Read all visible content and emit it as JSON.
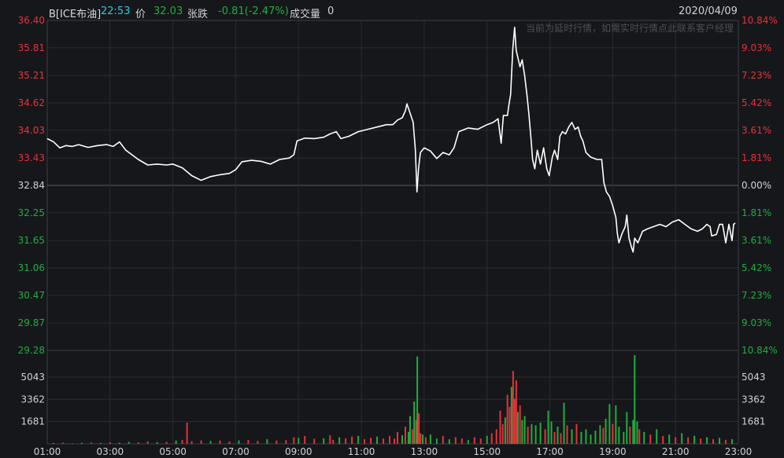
{
  "header": {
    "symbol": "B[ICE布油]",
    "time": "22:53",
    "price_label": "价",
    "price": "32.03",
    "change_label": "张跌",
    "change": "-0.81(-2.47%)",
    "volume_label": "成交量",
    "volume": "0",
    "date": "2020/04/09"
  },
  "notice": "当前为延时行情，如需实时行情点此联系客户经理",
  "colors": {
    "up": "#e8313a",
    "down": "#1fae3f",
    "base": "#d0d3d6",
    "line": "#ffffff",
    "time": "#31c7d8"
  },
  "chart_data": {
    "type": "line",
    "price_axis": {
      "ticks": [
        "36.40",
        "35.81",
        "35.21",
        "34.62",
        "34.03",
        "33.43",
        "32.84",
        "32.25",
        "31.65",
        "31.06",
        "30.47",
        "29.87",
        "29.28"
      ],
      "ylim": [
        29.28,
        36.4
      ],
      "reference": 32.84
    },
    "percent_axis": {
      "ticks": [
        "10.84%",
        "9.03%",
        "7.23%",
        "5.42%",
        "3.61%",
        "1.81%",
        "0.00%",
        "1.81%",
        "3.61%",
        "5.42%",
        "7.23%",
        "9.03%",
        "10.84%"
      ]
    },
    "volume_axis": {
      "ticks": [
        "5043",
        "3362",
        "1681"
      ]
    },
    "x_ticks": [
      "01:00",
      "03:00",
      "05:00",
      "07:00",
      "09:00",
      "11:00",
      "13:00",
      "15:00",
      "17:00",
      "19:00",
      "21:00",
      "23:00"
    ],
    "x_range_hours": [
      1,
      23
    ],
    "series": [
      {
        "points": [
          [
            1.0,
            33.85
          ],
          [
            1.2,
            33.78
          ],
          [
            1.4,
            33.65
          ],
          [
            1.6,
            33.7
          ],
          [
            1.8,
            33.68
          ],
          [
            2.0,
            33.72
          ],
          [
            2.3,
            33.66
          ],
          [
            2.6,
            33.7
          ],
          [
            2.9,
            33.72
          ],
          [
            3.1,
            33.68
          ],
          [
            3.3,
            33.78
          ],
          [
            3.5,
            33.6
          ],
          [
            3.7,
            33.5
          ],
          [
            3.9,
            33.4
          ],
          [
            4.2,
            33.28
          ],
          [
            4.5,
            33.3
          ],
          [
            4.8,
            33.28
          ],
          [
            5.0,
            33.3
          ],
          [
            5.3,
            33.22
          ],
          [
            5.6,
            33.05
          ],
          [
            5.9,
            32.95
          ],
          [
            6.2,
            33.03
          ],
          [
            6.5,
            33.07
          ],
          [
            6.8,
            33.1
          ],
          [
            7.0,
            33.18
          ],
          [
            7.2,
            33.35
          ],
          [
            7.5,
            33.38
          ],
          [
            7.8,
            33.36
          ],
          [
            8.1,
            33.3
          ],
          [
            8.4,
            33.4
          ],
          [
            8.7,
            33.43
          ],
          [
            8.85,
            33.5
          ],
          [
            8.95,
            33.8
          ],
          [
            9.2,
            33.86
          ],
          [
            9.5,
            33.85
          ],
          [
            9.8,
            33.88
          ],
          [
            10.0,
            33.95
          ],
          [
            10.2,
            34.0
          ],
          [
            10.35,
            33.85
          ],
          [
            10.6,
            33.9
          ],
          [
            10.9,
            34.0
          ],
          [
            11.2,
            34.05
          ],
          [
            11.5,
            34.1
          ],
          [
            11.8,
            34.15
          ],
          [
            12.0,
            34.15
          ],
          [
            12.15,
            34.25
          ],
          [
            12.3,
            34.3
          ],
          [
            12.4,
            34.45
          ],
          [
            12.45,
            34.6
          ],
          [
            12.55,
            34.4
          ],
          [
            12.65,
            34.2
          ],
          [
            12.72,
            33.6
          ],
          [
            12.77,
            32.7
          ],
          [
            12.82,
            33.2
          ],
          [
            12.88,
            33.55
          ],
          [
            13.0,
            33.65
          ],
          [
            13.2,
            33.58
          ],
          [
            13.4,
            33.42
          ],
          [
            13.6,
            33.55
          ],
          [
            13.8,
            33.5
          ],
          [
            13.95,
            33.65
          ],
          [
            14.1,
            34.0
          ],
          [
            14.4,
            34.08
          ],
          [
            14.7,
            34.05
          ],
          [
            15.0,
            34.15
          ],
          [
            15.2,
            34.2
          ],
          [
            15.35,
            34.28
          ],
          [
            15.45,
            33.75
          ],
          [
            15.52,
            34.35
          ],
          [
            15.65,
            34.35
          ],
          [
            15.7,
            34.6
          ],
          [
            15.75,
            34.8
          ],
          [
            15.82,
            35.8
          ],
          [
            15.88,
            36.25
          ],
          [
            15.93,
            35.75
          ],
          [
            16.05,
            35.4
          ],
          [
            16.12,
            35.55
          ],
          [
            16.2,
            35.2
          ],
          [
            16.27,
            34.8
          ],
          [
            16.33,
            34.4
          ],
          [
            16.4,
            33.85
          ],
          [
            16.45,
            33.4
          ],
          [
            16.52,
            33.2
          ],
          [
            16.6,
            33.6
          ],
          [
            16.7,
            33.3
          ],
          [
            16.8,
            33.65
          ],
          [
            16.9,
            33.2
          ],
          [
            16.98,
            33.05
          ],
          [
            17.08,
            33.45
          ],
          [
            17.15,
            33.6
          ],
          [
            17.25,
            33.4
          ],
          [
            17.32,
            33.9
          ],
          [
            17.4,
            34.0
          ],
          [
            17.5,
            33.95
          ],
          [
            17.6,
            34.1
          ],
          [
            17.7,
            34.2
          ],
          [
            17.8,
            34.05
          ],
          [
            17.9,
            34.1
          ],
          [
            17.98,
            33.9
          ],
          [
            18.05,
            33.8
          ],
          [
            18.15,
            33.55
          ],
          [
            18.3,
            33.45
          ],
          [
            18.5,
            33.4
          ],
          [
            18.65,
            33.4
          ],
          [
            18.72,
            32.9
          ],
          [
            18.8,
            32.7
          ],
          [
            18.9,
            32.6
          ],
          [
            19.0,
            32.4
          ],
          [
            19.1,
            32.15
          ],
          [
            19.15,
            31.8
          ],
          [
            19.2,
            31.6
          ],
          [
            19.3,
            31.8
          ],
          [
            19.4,
            31.95
          ],
          [
            19.45,
            32.2
          ],
          [
            19.52,
            31.7
          ],
          [
            19.6,
            31.5
          ],
          [
            19.65,
            31.4
          ],
          [
            19.7,
            31.7
          ],
          [
            19.8,
            31.6
          ],
          [
            19.95,
            31.85
          ],
          [
            20.1,
            31.9
          ],
          [
            20.3,
            31.95
          ],
          [
            20.5,
            32.0
          ],
          [
            20.7,
            31.95
          ],
          [
            20.9,
            32.05
          ],
          [
            21.1,
            32.1
          ],
          [
            21.3,
            32.0
          ],
          [
            21.5,
            31.9
          ],
          [
            21.7,
            31.85
          ],
          [
            21.85,
            31.9
          ],
          [
            22.0,
            32.0
          ],
          [
            22.1,
            31.95
          ],
          [
            22.15,
            31.75
          ],
          [
            22.3,
            31.78
          ],
          [
            22.4,
            32.0
          ],
          [
            22.5,
            32.0
          ],
          [
            22.6,
            31.6
          ],
          [
            22.7,
            32.0
          ],
          [
            22.8,
            31.65
          ],
          [
            22.85,
            32.0
          ],
          [
            22.9,
            32.03
          ]
        ]
      }
    ],
    "volume_bars": {
      "max": 6700,
      "points": [
        [
          1.2,
          60,
          "down"
        ],
        [
          1.5,
          90,
          "up"
        ],
        [
          1.8,
          40,
          "up"
        ],
        [
          2.1,
          80,
          "down"
        ],
        [
          2.4,
          100,
          "up"
        ],
        [
          2.7,
          70,
          "down"
        ],
        [
          3.0,
          120,
          "up"
        ],
        [
          3.3,
          90,
          "down"
        ],
        [
          3.6,
          150,
          "down"
        ],
        [
          3.9,
          110,
          "up"
        ],
        [
          4.2,
          180,
          "up"
        ],
        [
          4.5,
          130,
          "down"
        ],
        [
          4.8,
          150,
          "up"
        ],
        [
          5.1,
          250,
          "down"
        ],
        [
          5.3,
          300,
          "up"
        ],
        [
          5.45,
          1600,
          "up"
        ],
        [
          5.6,
          200,
          "up"
        ],
        [
          5.9,
          260,
          "up"
        ],
        [
          6.2,
          220,
          "down"
        ],
        [
          6.5,
          250,
          "up"
        ],
        [
          6.8,
          180,
          "up"
        ],
        [
          7.1,
          260,
          "down"
        ],
        [
          7.4,
          300,
          "up"
        ],
        [
          7.7,
          220,
          "up"
        ],
        [
          8.0,
          350,
          "down"
        ],
        [
          8.3,
          250,
          "up"
        ],
        [
          8.6,
          280,
          "up"
        ],
        [
          8.85,
          500,
          "up"
        ],
        [
          9.0,
          450,
          "down"
        ],
        [
          9.2,
          600,
          "up"
        ],
        [
          9.5,
          380,
          "up"
        ],
        [
          9.8,
          420,
          "down"
        ],
        [
          10.0,
          650,
          "up"
        ],
        [
          10.1,
          300,
          "up"
        ],
        [
          10.3,
          500,
          "down"
        ],
        [
          10.5,
          420,
          "up"
        ],
        [
          10.7,
          550,
          "up"
        ],
        [
          10.9,
          600,
          "down"
        ],
        [
          11.1,
          350,
          "up"
        ],
        [
          11.3,
          450,
          "up"
        ],
        [
          11.5,
          550,
          "down"
        ],
        [
          11.7,
          400,
          "up"
        ],
        [
          11.9,
          600,
          "up"
        ],
        [
          12.05,
          400,
          "up"
        ],
        [
          12.15,
          900,
          "up"
        ],
        [
          12.3,
          650,
          "down"
        ],
        [
          12.4,
          1300,
          "up"
        ],
        [
          12.5,
          900,
          "down"
        ],
        [
          12.55,
          2100,
          "down"
        ],
        [
          12.62,
          1100,
          "up"
        ],
        [
          12.68,
          3200,
          "down"
        ],
        [
          12.74,
          1800,
          "up"
        ],
        [
          12.78,
          6600,
          "down"
        ],
        [
          12.83,
          2300,
          "up"
        ],
        [
          12.88,
          800,
          "up"
        ],
        [
          12.95,
          700,
          "down"
        ],
        [
          13.05,
          500,
          "up"
        ],
        [
          13.2,
          700,
          "down"
        ],
        [
          13.4,
          400,
          "down"
        ],
        [
          13.6,
          600,
          "up"
        ],
        [
          13.8,
          350,
          "down"
        ],
        [
          14.0,
          500,
          "up"
        ],
        [
          14.2,
          400,
          "up"
        ],
        [
          14.4,
          300,
          "down"
        ],
        [
          14.6,
          500,
          "up"
        ],
        [
          14.8,
          400,
          "up"
        ],
        [
          15.0,
          600,
          "down"
        ],
        [
          15.15,
          800,
          "up"
        ],
        [
          15.3,
          1100,
          "up"
        ],
        [
          15.42,
          2500,
          "up"
        ],
        [
          15.5,
          1500,
          "up"
        ],
        [
          15.58,
          2000,
          "down"
        ],
        [
          15.65,
          3700,
          "up"
        ],
        [
          15.72,
          2800,
          "up"
        ],
        [
          15.78,
          4300,
          "down"
        ],
        [
          15.83,
          5500,
          "up"
        ],
        [
          15.88,
          3400,
          "up"
        ],
        [
          15.93,
          4800,
          "up"
        ],
        [
          15.98,
          2400,
          "down"
        ],
        [
          16.05,
          2900,
          "up"
        ],
        [
          16.12,
          1800,
          "down"
        ],
        [
          16.2,
          2100,
          "down"
        ],
        [
          16.3,
          1300,
          "up"
        ],
        [
          16.42,
          1500,
          "down"
        ],
        [
          16.55,
          1400,
          "down"
        ],
        [
          16.7,
          1600,
          "down"
        ],
        [
          16.85,
          1100,
          "up"
        ],
        [
          16.95,
          2500,
          "down"
        ],
        [
          17.05,
          1700,
          "down"
        ],
        [
          17.15,
          900,
          "up"
        ],
        [
          17.25,
          1300,
          "down"
        ],
        [
          17.35,
          800,
          "up"
        ],
        [
          17.45,
          3100,
          "down"
        ],
        [
          17.55,
          1400,
          "up"
        ],
        [
          17.7,
          1100,
          "down"
        ],
        [
          17.85,
          1500,
          "up"
        ],
        [
          18.0,
          900,
          "down"
        ],
        [
          18.15,
          1100,
          "down"
        ],
        [
          18.3,
          700,
          "down"
        ],
        [
          18.45,
          1000,
          "down"
        ],
        [
          18.6,
          1400,
          "down"
        ],
        [
          18.7,
          1200,
          "up"
        ],
        [
          18.78,
          1900,
          "down"
        ],
        [
          18.9,
          3000,
          "down"
        ],
        [
          19.0,
          1500,
          "up"
        ],
        [
          19.1,
          2900,
          "down"
        ],
        [
          19.2,
          1300,
          "down"
        ],
        [
          19.35,
          900,
          "down"
        ],
        [
          19.45,
          2400,
          "down"
        ],
        [
          19.55,
          1300,
          "up"
        ],
        [
          19.65,
          1800,
          "down"
        ],
        [
          19.7,
          6700,
          "down"
        ],
        [
          19.78,
          1700,
          "down"
        ],
        [
          19.85,
          1100,
          "up"
        ],
        [
          20.0,
          900,
          "down"
        ],
        [
          20.2,
          700,
          "up"
        ],
        [
          20.4,
          1100,
          "down"
        ],
        [
          20.6,
          600,
          "up"
        ],
        [
          20.8,
          700,
          "down"
        ],
        [
          21.0,
          500,
          "up"
        ],
        [
          21.2,
          800,
          "down"
        ],
        [
          21.4,
          500,
          "up"
        ],
        [
          21.6,
          600,
          "down"
        ],
        [
          21.8,
          400,
          "up"
        ],
        [
          22.0,
          500,
          "down"
        ],
        [
          22.2,
          350,
          "up"
        ],
        [
          22.4,
          450,
          "down"
        ],
        [
          22.6,
          300,
          "up"
        ],
        [
          22.8,
          350,
          "down"
        ]
      ]
    }
  }
}
